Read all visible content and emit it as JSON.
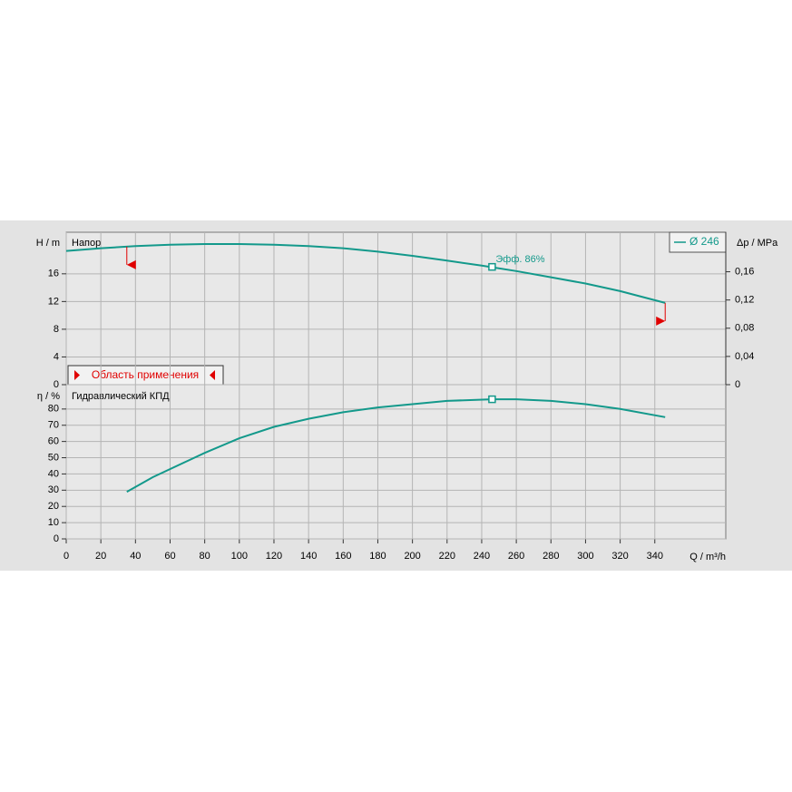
{
  "chart_data": [
    {
      "type": "line",
      "title": "Напор",
      "ylabel": "H / m",
      "y2label": "Δp / MPa",
      "x": [
        0,
        20,
        40,
        60,
        80,
        100,
        120,
        140,
        160,
        180,
        200,
        220,
        240,
        260,
        280,
        300,
        320,
        346
      ],
      "series": [
        {
          "name": "Ø 246",
          "color": "#13998b",
          "values": [
            19.3,
            19.7,
            20.0,
            20.2,
            20.3,
            20.3,
            20.2,
            20.0,
            19.7,
            19.2,
            18.6,
            17.9,
            17.2,
            16.4,
            15.5,
            14.6,
            13.5,
            11.8
          ]
        }
      ],
      "xlim": [
        0,
        381
      ],
      "ylim": [
        0,
        22
      ],
      "yticks": [
        0,
        4,
        8,
        12,
        16
      ],
      "y2lim": [
        0,
        0.216
      ],
      "y2ticks": [
        0,
        {
          "value": 0.04,
          "label": "0,04"
        },
        {
          "value": 0.08,
          "label": "0,08"
        },
        {
          "value": 0.12,
          "label": "0,12"
        },
        {
          "value": 0.16,
          "label": "0,16"
        }
      ],
      "marker_x": 246,
      "marker_y": 17,
      "annotation": "Эфф.  86%",
      "range_label": "Область применения",
      "range": [
        35,
        346
      ],
      "range_color": "#e00000",
      "grid": true
    },
    {
      "type": "line",
      "title": "Гидравлический КПД",
      "ylabel": "η / %",
      "xlabel": "Q / m³/h",
      "x": [
        35,
        50,
        70,
        80,
        100,
        120,
        140,
        160,
        180,
        200,
        220,
        246,
        260,
        280,
        300,
        320,
        346
      ],
      "series": [
        {
          "color": "#13998b",
          "values": [
            29,
            38,
            48,
            53,
            62,
            69,
            74,
            78,
            81,
            83,
            85,
            86,
            86,
            85,
            83,
            80,
            75
          ]
        }
      ],
      "xlim": [
        0,
        381
      ],
      "ylim": [
        0,
        95
      ],
      "yticks": [
        0,
        10,
        20,
        30,
        40,
        50,
        60,
        70,
        80
      ],
      "xticks": [
        0,
        20,
        40,
        60,
        80,
        100,
        120,
        140,
        160,
        180,
        200,
        220,
        240,
        260,
        280,
        300,
        320,
        340
      ],
      "marker_x": 246,
      "marker_y": 86,
      "grid": true
    }
  ]
}
